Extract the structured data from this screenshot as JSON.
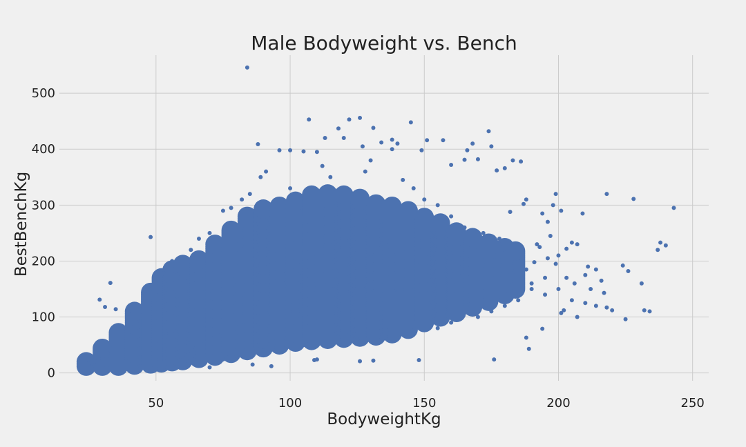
{
  "chart_data": {
    "type": "scatter",
    "title": "Male Bodyweight vs. Bench",
    "xlabel": "BodyweightKg",
    "ylabel": "BestBenchKg",
    "xlim": [
      14,
      256
    ],
    "ylim": [
      -14,
      568
    ],
    "xticks": [
      50,
      100,
      150,
      200,
      250
    ],
    "yticks": [
      0,
      100,
      200,
      300,
      400,
      500
    ],
    "xtick_labels": [
      "50",
      "100",
      "150",
      "200",
      "250"
    ],
    "ytick_labels": [
      "0",
      "100",
      "200",
      "300",
      "400",
      "500"
    ],
    "grid": true,
    "colors": {
      "background": "#f0f0f0",
      "marker": "#4c72b0",
      "grid": "#cbcbcb"
    },
    "series": [
      {
        "points": [
          [
            84,
            546
          ],
          [
            107,
            453
          ],
          [
            122,
            453
          ],
          [
            126,
            456
          ],
          [
            145,
            448
          ],
          [
            174,
            432
          ],
          [
            88,
            409
          ],
          [
            168,
            410
          ],
          [
            175,
            405
          ],
          [
            118,
            437
          ],
          [
            131,
            438
          ],
          [
            138,
            417
          ],
          [
            151,
            416
          ],
          [
            157,
            416
          ],
          [
            113,
            420
          ],
          [
            120,
            420
          ],
          [
            134,
            412
          ],
          [
            140,
            410
          ],
          [
            96,
            398
          ],
          [
            100,
            398
          ],
          [
            105,
            396
          ],
          [
            110,
            395
          ],
          [
            127,
            405
          ],
          [
            138,
            400
          ],
          [
            149,
            398
          ],
          [
            166,
            398
          ],
          [
            183,
            380
          ],
          [
            186,
            378
          ],
          [
            170,
            382
          ],
          [
            165,
            381
          ],
          [
            177,
            362
          ],
          [
            180,
            366
          ],
          [
            160,
            372
          ],
          [
            130,
            380
          ],
          [
            100,
            330
          ],
          [
            115,
            350
          ],
          [
            48,
            243
          ],
          [
            33,
            161
          ],
          [
            35,
            114
          ],
          [
            29,
            131
          ],
          [
            31,
            118
          ],
          [
            25,
            17
          ],
          [
            27,
            14
          ],
          [
            52,
            8
          ],
          [
            70,
            10
          ],
          [
            86,
            15
          ],
          [
            93,
            12
          ],
          [
            109,
            23
          ],
          [
            110,
            24
          ],
          [
            126,
            21
          ],
          [
            131,
            22
          ],
          [
            148,
            23
          ],
          [
            176,
            24
          ],
          [
            188,
            63
          ],
          [
            189,
            43
          ],
          [
            194,
            79
          ],
          [
            199,
            320
          ],
          [
            209,
            285
          ],
          [
            218,
            320
          ],
          [
            228,
            311
          ],
          [
            243,
            295
          ],
          [
            238,
            233
          ],
          [
            240,
            228
          ],
          [
            237,
            220
          ],
          [
            231,
            160
          ],
          [
            224,
            192
          ],
          [
            226,
            182
          ],
          [
            232,
            112
          ],
          [
            234,
            110
          ],
          [
            225,
            96
          ],
          [
            218,
            117
          ],
          [
            220,
            112
          ],
          [
            214,
            120
          ],
          [
            200,
            150
          ],
          [
            205,
            130
          ],
          [
            210,
            125
          ],
          [
            201,
            107
          ],
          [
            202,
            112
          ],
          [
            207,
            100
          ],
          [
            195,
            140
          ],
          [
            190,
            160
          ],
          [
            217,
            143
          ],
          [
            211,
            190
          ],
          [
            214,
            185
          ],
          [
            207,
            230
          ],
          [
            205,
            233
          ],
          [
            203,
            222
          ],
          [
            197,
            245
          ],
          [
            193,
            225
          ],
          [
            192,
            230
          ],
          [
            198,
            300
          ],
          [
            201,
            290
          ],
          [
            196,
            270
          ],
          [
            194,
            285
          ],
          [
            188,
            310
          ],
          [
            187,
            302
          ],
          [
            182,
            288
          ],
          [
            178,
            240
          ],
          [
            172,
            250
          ],
          [
            165,
            260
          ],
          [
            160,
            280
          ],
          [
            155,
            300
          ],
          [
            150,
            310
          ],
          [
            146,
            330
          ],
          [
            142,
            345
          ],
          [
            128,
            360
          ],
          [
            112,
            370
          ],
          [
            91,
            360
          ],
          [
            89,
            350
          ],
          [
            85,
            320
          ],
          [
            82,
            310
          ],
          [
            78,
            295
          ],
          [
            75,
            290
          ],
          [
            70,
            250
          ],
          [
            66,
            240
          ],
          [
            63,
            220
          ],
          [
            60,
            205
          ],
          [
            56,
            200
          ],
          [
            53,
            178
          ],
          [
            50,
            160
          ],
          [
            47,
            140
          ],
          [
            44,
            120
          ],
          [
            41,
            105
          ],
          [
            38,
            80
          ],
          [
            36,
            60
          ],
          [
            34,
            45
          ],
          [
            32,
            35
          ],
          [
            30,
            25
          ],
          [
            28,
            20
          ],
          [
            26,
            18
          ],
          [
            40,
            22
          ],
          [
            45,
            18
          ],
          [
            55,
            22
          ],
          [
            60,
            28
          ],
          [
            65,
            30
          ],
          [
            75,
            24
          ],
          [
            80,
            30
          ],
          [
            90,
            40
          ],
          [
            95,
            45
          ],
          [
            105,
            50
          ],
          [
            115,
            55
          ],
          [
            125,
            60
          ],
          [
            135,
            62
          ],
          [
            145,
            70
          ],
          [
            155,
            80
          ],
          [
            160,
            90
          ],
          [
            170,
            100
          ],
          [
            175,
            110
          ],
          [
            180,
            120
          ],
          [
            185,
            130
          ],
          [
            190,
            150
          ],
          [
            195,
            170
          ],
          [
            185,
            200
          ],
          [
            180,
            215
          ],
          [
            178,
            230
          ],
          [
            183,
            175
          ],
          [
            188,
            185
          ],
          [
            191,
            198
          ],
          [
            196,
            205
          ],
          [
            199,
            195
          ],
          [
            200,
            210
          ],
          [
            203,
            170
          ],
          [
            206,
            160
          ],
          [
            210,
            175
          ],
          [
            212,
            150
          ],
          [
            216,
            165
          ]
        ]
      }
    ]
  }
}
